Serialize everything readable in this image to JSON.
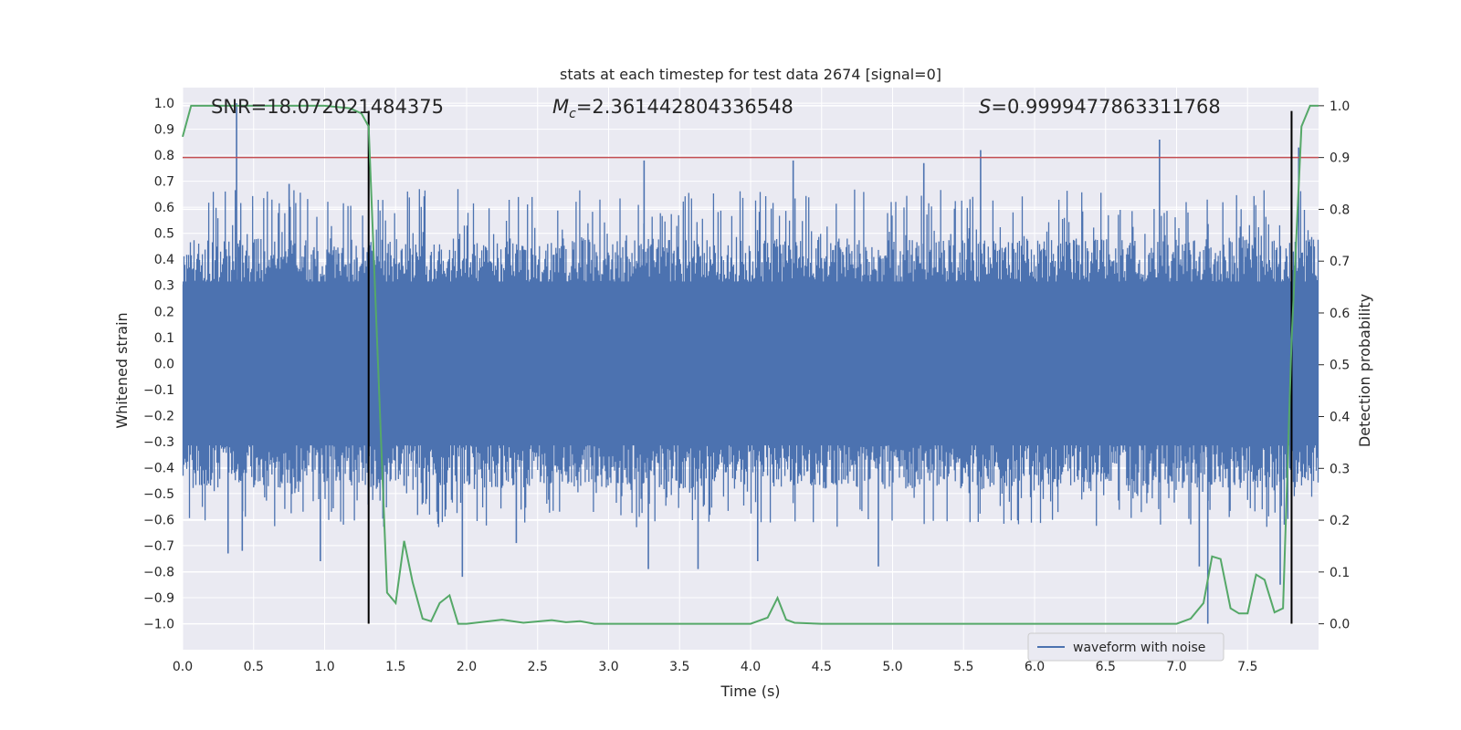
{
  "chart_data": {
    "type": "line",
    "title": "stats at each timestep for test data 2674 [signal=0]",
    "xlabel": "Time (s)",
    "ylabel_left": "Whitened strain",
    "ylabel_right": "Detection probability",
    "xlim": [
      0.0,
      8.0
    ],
    "ylim_left": [
      -1.1,
      1.06
    ],
    "ylim_right": [
      -0.05,
      1.035
    ],
    "x_ticks": [
      "0.0",
      "0.5",
      "1.0",
      "1.5",
      "2.0",
      "2.5",
      "3.0",
      "3.5",
      "4.0",
      "4.5",
      "5.0",
      "5.5",
      "6.0",
      "6.5",
      "7.0",
      "7.5"
    ],
    "y_left_ticks": [
      "1.0",
      "0.9",
      "0.8",
      "0.7",
      "0.6",
      "0.5",
      "0.4",
      "0.3",
      "0.2",
      "0.1",
      "0.0",
      "-0.1",
      "-0.2",
      "-0.3",
      "-0.4",
      "-0.5",
      "-0.6",
      "-0.7",
      "-0.8",
      "-0.9",
      "-1.0"
    ],
    "y_right_ticks": [
      "1.0",
      "0.9",
      "0.8",
      "0.7",
      "0.6",
      "0.5",
      "0.4",
      "0.3",
      "0.2",
      "0.1",
      "0.0"
    ],
    "annotations": {
      "snr": "SNR=18.072021484375",
      "mc_symbol": "M",
      "mc_sub": "c",
      "mc_value": "=2.361442804336548",
      "s_symbol": "S",
      "s_value": "=0.9999477863311768"
    },
    "threshold_line": {
      "axis": "right",
      "value": 0.9,
      "color": "#c44e52"
    },
    "vertical_markers": [
      {
        "x": 1.31,
        "y_left_range": [
          -1.0,
          0.97
        ]
      },
      {
        "x": 7.81,
        "y_left_range": [
          -1.0,
          0.97
        ]
      }
    ],
    "series": [
      {
        "name": "waveform with noise",
        "axis": "left",
        "color": "#4c72b0",
        "description_envelope_typical": [
          -0.42,
          0.42
        ],
        "spikes": [
          {
            "x": 0.38,
            "y": 1.0
          },
          {
            "x": 0.32,
            "y": -0.73
          },
          {
            "x": 0.42,
            "y": -0.72
          },
          {
            "x": 0.97,
            "y": -0.76
          },
          {
            "x": 0.75,
            "y": 0.69
          },
          {
            "x": 1.56,
            "y": -0.47
          },
          {
            "x": 1.97,
            "y": -0.82
          },
          {
            "x": 3.25,
            "y": 0.78
          },
          {
            "x": 3.28,
            "y": -0.79
          },
          {
            "x": 3.63,
            "y": -0.79
          },
          {
            "x": 4.3,
            "y": 0.78
          },
          {
            "x": 4.9,
            "y": -0.78
          },
          {
            "x": 5.22,
            "y": 0.77
          },
          {
            "x": 5.62,
            "y": 0.82
          },
          {
            "x": 6.88,
            "y": 0.86
          },
          {
            "x": 7.22,
            "y": -1.0
          },
          {
            "x": 7.16,
            "y": -0.78
          },
          {
            "x": 7.73,
            "y": -0.85
          },
          {
            "x": 7.86,
            "y": 0.83
          },
          {
            "x": 4.05,
            "y": -0.76
          },
          {
            "x": 2.35,
            "y": -0.69
          }
        ]
      },
      {
        "name": "detection probability",
        "axis": "right",
        "color": "#55a868",
        "x": [
          0.0,
          0.06,
          0.12,
          0.5,
          1.0,
          1.18,
          1.26,
          1.31,
          1.44,
          1.5,
          1.56,
          1.62,
          1.69,
          1.75,
          1.81,
          1.88,
          1.94,
          2.0,
          2.25,
          2.4,
          2.6,
          2.7,
          2.8,
          2.9,
          3.0,
          3.5,
          4.0,
          4.12,
          4.19,
          4.25,
          4.31,
          4.5,
          5.0,
          6.0,
          6.5,
          7.0,
          7.1,
          7.19,
          7.25,
          7.31,
          7.38,
          7.44,
          7.5,
          7.56,
          7.62,
          7.69,
          7.75,
          7.81,
          7.88,
          7.94,
          8.0
        ],
        "y": [
          0.94,
          1.0,
          1.0,
          1.0,
          1.0,
          0.995,
          0.985,
          0.96,
          0.06,
          0.04,
          0.16,
          0.08,
          0.01,
          0.005,
          0.04,
          0.055,
          0.0,
          0.0,
          0.008,
          0.002,
          0.007,
          0.003,
          0.005,
          0.0,
          0.0,
          0.0,
          0.0,
          0.012,
          0.05,
          0.008,
          0.002,
          0.0,
          0.0,
          0.0,
          0.0,
          0.0,
          0.01,
          0.04,
          0.13,
          0.125,
          0.03,
          0.02,
          0.02,
          0.095,
          0.085,
          0.022,
          0.03,
          0.55,
          0.96,
          1.0,
          1.0
        ]
      }
    ],
    "legend": {
      "location": "lower-right",
      "entries": [
        "waveform with noise"
      ]
    },
    "grid": true,
    "colors": {
      "background": "#eaeaf2",
      "grid": "#ffffff",
      "marker": "#000000"
    }
  }
}
